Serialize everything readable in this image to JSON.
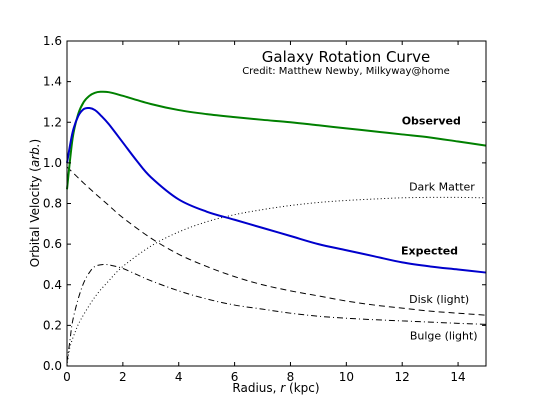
{
  "chart_data": {
    "type": "line",
    "title": "Galaxy Rotation Curve",
    "subtitle": "Credit:  Matthew Newby, Milkyway@home",
    "xlabel_prefix": "Radius, ",
    "xlabel_var": "r",
    "xlabel_suffix": " (kpc)",
    "ylabel_prefix": "Orbital Velocity (",
    "ylabel_var": "arb.",
    "ylabel_suffix": ")",
    "xlim": [
      0,
      15
    ],
    "ylim": [
      0.0,
      1.6
    ],
    "xticks": [
      0,
      2,
      4,
      6,
      8,
      10,
      12,
      14
    ],
    "xtick_labels": [
      "0",
      "2",
      "4",
      "6",
      "8",
      "10",
      "12",
      "14"
    ],
    "yticks": [
      0.0,
      0.2,
      0.4,
      0.6,
      0.8,
      1.0,
      1.2,
      1.4,
      1.6
    ],
    "ytick_labels": [
      "0.0",
      "0.2",
      "0.4",
      "0.6",
      "0.8",
      "1.0",
      "1.2",
      "1.4",
      "1.6"
    ],
    "grid": false,
    "series": [
      {
        "name": "Observed",
        "color": "#008000",
        "style": "solid",
        "x": [
          0,
          0.2,
          0.4,
          0.6,
          0.8,
          1.0,
          1.2,
          1.5,
          2,
          3,
          4,
          5,
          6,
          7,
          8,
          9,
          10,
          11,
          12,
          13,
          14,
          15
        ],
        "y": [
          0.87,
          1.12,
          1.24,
          1.3,
          1.33,
          1.345,
          1.35,
          1.348,
          1.33,
          1.29,
          1.26,
          1.24,
          1.225,
          1.212,
          1.2,
          1.185,
          1.17,
          1.155,
          1.14,
          1.125,
          1.105,
          1.085
        ]
      },
      {
        "name": "Expected",
        "color": "#0000cc",
        "style": "solid",
        "x": [
          0,
          0.2,
          0.4,
          0.6,
          0.8,
          1.0,
          1.2,
          1.5,
          2,
          2.5,
          3,
          4,
          5,
          6,
          7,
          8,
          9,
          10,
          11,
          12,
          13,
          14,
          15
        ],
        "y": [
          1.0,
          1.15,
          1.23,
          1.265,
          1.27,
          1.26,
          1.235,
          1.19,
          1.1,
          1.01,
          0.93,
          0.82,
          0.76,
          0.72,
          0.68,
          0.64,
          0.6,
          0.57,
          0.54,
          0.51,
          0.49,
          0.475,
          0.46
        ]
      },
      {
        "name": "Dark Matter",
        "color": "#000000",
        "style": "dotted",
        "x": [
          0,
          0.1,
          0.3,
          0.5,
          1,
          1.5,
          2,
          3,
          4,
          5,
          6,
          7,
          8,
          9,
          10,
          11,
          12,
          13,
          14,
          15
        ],
        "y": [
          0.0,
          0.09,
          0.17,
          0.23,
          0.34,
          0.42,
          0.49,
          0.59,
          0.66,
          0.71,
          0.745,
          0.77,
          0.79,
          0.805,
          0.815,
          0.822,
          0.828,
          0.83,
          0.83,
          0.828
        ]
      },
      {
        "name": "Disk (light)",
        "color": "#000000",
        "style": "dashed",
        "x": [
          0,
          0.3,
          0.6,
          1,
          1.5,
          2,
          3,
          4,
          5,
          6,
          7,
          8,
          9,
          10,
          11,
          12,
          13,
          14,
          15
        ],
        "y": [
          0.98,
          0.94,
          0.9,
          0.85,
          0.79,
          0.73,
          0.63,
          0.55,
          0.49,
          0.44,
          0.4,
          0.37,
          0.345,
          0.32,
          0.3,
          0.285,
          0.27,
          0.26,
          0.25
        ]
      },
      {
        "name": "Bulge (light)",
        "color": "#000000",
        "style": "dashdot",
        "x": [
          0,
          0.1,
          0.2,
          0.4,
          0.6,
          0.8,
          1.0,
          1.3,
          1.6,
          2,
          2.5,
          3,
          4,
          5,
          6,
          7,
          8,
          9,
          10,
          11,
          12,
          13,
          14,
          15
        ],
        "y": [
          0.02,
          0.12,
          0.22,
          0.33,
          0.41,
          0.46,
          0.49,
          0.5,
          0.495,
          0.48,
          0.45,
          0.42,
          0.37,
          0.33,
          0.3,
          0.28,
          0.26,
          0.245,
          0.235,
          0.228,
          0.222,
          0.216,
          0.21,
          0.205
        ]
      }
    ],
    "annotations": [
      {
        "text": "Observed",
        "bold": true,
        "x": 14.1,
        "y": 1.19
      },
      {
        "text": "Dark Matter",
        "bold": false,
        "x": 14.6,
        "y": 0.865
      },
      {
        "text": "Expected",
        "bold": true,
        "x": 14.0,
        "y": 0.55
      },
      {
        "text": "Disk (light)",
        "bold": false,
        "x": 14.4,
        "y": 0.31
      },
      {
        "text": "Bulge (light)",
        "bold": false,
        "x": 14.7,
        "y": 0.13
      }
    ]
  }
}
